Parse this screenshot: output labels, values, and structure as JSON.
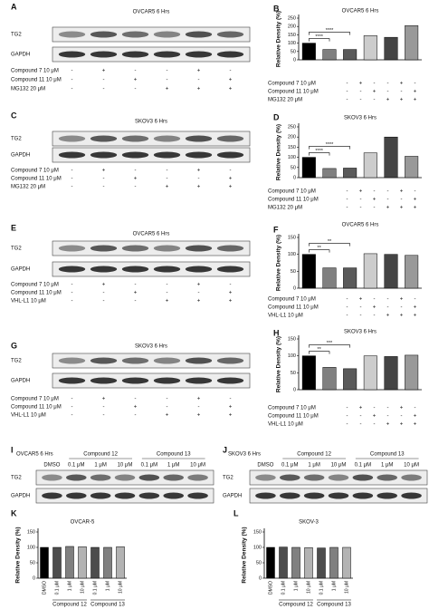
{
  "chart_data": [
    {
      "type": "bar",
      "panel": "B",
      "title": "OVCAR5 6 Hrs",
      "y_label": "Relative Density (%)",
      "ylim": [
        0,
        250
      ],
      "yticks": [
        0,
        50,
        100,
        150,
        200,
        250
      ],
      "values": [
        100,
        62,
        62,
        145,
        135,
        205
      ],
      "colors": [
        "#000000",
        "#808080",
        "#5a5a5a",
        "#cccccc",
        "#444444",
        "#999999"
      ],
      "annotations": [
        "****",
        "****"
      ],
      "conditions": [
        {
          "label": "Compound 7 10 μM",
          "signs": [
            "-",
            "+",
            "-",
            "-",
            "+",
            "-"
          ]
        },
        {
          "label": "Compound 11 10 μM",
          "signs": [
            "-",
            "-",
            "+",
            "-",
            "-",
            "+"
          ]
        },
        {
          "label": "MG132 20 μM",
          "signs": [
            "-",
            "-",
            "-",
            "+",
            "+",
            "+"
          ]
        }
      ]
    },
    {
      "type": "bar",
      "panel": "D",
      "title": "SKOV3 6 Hrs",
      "y_label": "Relative Density (%)",
      "ylim": [
        0,
        250
      ],
      "yticks": [
        0,
        50,
        100,
        150,
        200,
        250
      ],
      "values": [
        100,
        45,
        47,
        122,
        200,
        105
      ],
      "colors": [
        "#000000",
        "#808080",
        "#5a5a5a",
        "#cccccc",
        "#444444",
        "#999999"
      ],
      "annotations": [
        "****",
        "****"
      ],
      "conditions": [
        {
          "label": "Compound 7 10 μM",
          "signs": [
            "-",
            "+",
            "-",
            "-",
            "+",
            "-"
          ]
        },
        {
          "label": "Compound 11 10 μM",
          "signs": [
            "-",
            "-",
            "+",
            "-",
            "-",
            "+"
          ]
        },
        {
          "label": "MG132 20 μM",
          "signs": [
            "-",
            "-",
            "-",
            "+",
            "+",
            "+"
          ]
        }
      ]
    },
    {
      "type": "bar",
      "panel": "F",
      "title": "OVCAR5 6 Hrs",
      "y_label": "Relative Density (%)",
      "ylim": [
        0,
        150
      ],
      "yticks": [
        0,
        50,
        100,
        150
      ],
      "values": [
        100,
        60,
        60,
        102,
        100,
        97
      ],
      "colors": [
        "#000000",
        "#808080",
        "#5a5a5a",
        "#cccccc",
        "#444444",
        "#999999"
      ],
      "annotations": [
        "**",
        "**"
      ],
      "conditions": [
        {
          "label": "Compound 7 10 μM",
          "signs": [
            "-",
            "+",
            "-",
            "-",
            "+",
            "-"
          ]
        },
        {
          "label": "Compound 11 10 μM",
          "signs": [
            "-",
            "-",
            "+",
            "-",
            "-",
            "+"
          ]
        },
        {
          "label": "VHL-L1 10 μM",
          "signs": [
            "-",
            "-",
            "-",
            "+",
            "+",
            "+"
          ]
        }
      ]
    },
    {
      "type": "bar",
      "panel": "H",
      "title": "SKOV3 6 Hrs",
      "y_label": "Relative Density (%)",
      "ylim": [
        0,
        150
      ],
      "yticks": [
        0,
        50,
        100,
        150
      ],
      "values": [
        100,
        66,
        62,
        100,
        98,
        102
      ],
      "colors": [
        "#000000",
        "#808080",
        "#5a5a5a",
        "#cccccc",
        "#444444",
        "#999999"
      ],
      "annotations": [
        "**",
        "***"
      ],
      "conditions": [
        {
          "label": "Compound 7 10 μM",
          "signs": [
            "-",
            "+",
            "-",
            "-",
            "+",
            "-"
          ]
        },
        {
          "label": "Compound 11 10 μM",
          "signs": [
            "-",
            "-",
            "+",
            "-",
            "-",
            "+"
          ]
        },
        {
          "label": "VHL-L1 10 μM",
          "signs": [
            "-",
            "-",
            "-",
            "+",
            "+",
            "+"
          ]
        }
      ]
    },
    {
      "type": "bar",
      "panel": "K",
      "title": "OVCAR-5",
      "y_label": "Relative Density (%)",
      "ylim": [
        0,
        150
      ],
      "yticks": [
        0,
        50,
        100,
        150
      ],
      "categories": [
        "DMSO",
        "0.1 μM",
        "1 μM",
        "10 μM",
        "0.1 μM",
        "1 μM",
        "10 μM"
      ],
      "values": [
        100,
        100,
        103,
        102,
        100,
        100,
        102
      ],
      "colors": [
        "#000000",
        "#4d4d4d",
        "#808080",
        "#b3b3b3",
        "#4d4d4d",
        "#808080",
        "#b3b3b3"
      ],
      "groups": [
        "Compound 12",
        "Compound 13"
      ]
    },
    {
      "type": "bar",
      "panel": "L",
      "title": "SKOV-3",
      "y_label": "Relative Density (%)",
      "ylim": [
        0,
        150
      ],
      "yticks": [
        0,
        50,
        100,
        150
      ],
      "categories": [
        "DMSO",
        "0.1 μM",
        "1 μM",
        "10 μM",
        "0.1 μM",
        "1 μM",
        "10 μM"
      ],
      "values": [
        100,
        101,
        100,
        99,
        98,
        100,
        100
      ],
      "colors": [
        "#000000",
        "#4d4d4d",
        "#808080",
        "#b3b3b3",
        "#4d4d4d",
        "#808080",
        "#b3b3b3"
      ],
      "groups": [
        "Compound 12",
        "Compound 13"
      ]
    }
  ],
  "blots": [
    {
      "panel": "A",
      "title": "OVCAR5 6 Hrs",
      "bands": [
        "TG2",
        "GAPDH"
      ],
      "conditions": [
        {
          "label": "Compound 7 10 μM",
          "signs": [
            "-",
            "+",
            "-",
            "-",
            "+",
            "-"
          ]
        },
        {
          "label": "Compound 11 10 μM",
          "signs": [
            "-",
            "-",
            "+",
            "-",
            "-",
            "+"
          ]
        },
        {
          "label": "MG132 20 μM",
          "signs": [
            "-",
            "-",
            "-",
            "+",
            "+",
            "+"
          ]
        }
      ]
    },
    {
      "panel": "C",
      "title": "SKOV3 6 Hrs",
      "bands": [
        "TG2",
        "GAPDH"
      ],
      "conditions": [
        {
          "label": "Compound 7 10 μM",
          "signs": [
            "-",
            "+",
            "-",
            "-",
            "+",
            "-"
          ]
        },
        {
          "label": "Compound 11 10 μM",
          "signs": [
            "-",
            "-",
            "+",
            "-",
            "-",
            "+"
          ]
        },
        {
          "label": "MG132 20 μM",
          "signs": [
            "-",
            "-",
            "-",
            "+",
            "+",
            "+"
          ]
        }
      ]
    },
    {
      "panel": "E",
      "title": "OVCAR5 6 Hrs",
      "bands": [
        "TG2",
        "GAPDH"
      ],
      "conditions": [
        {
          "label": "Compound 7 10 μM",
          "signs": [
            "-",
            "+",
            "-",
            "-",
            "+",
            "-"
          ]
        },
        {
          "label": "Compound 11 10 μM",
          "signs": [
            "-",
            "-",
            "+",
            "-",
            "-",
            "+"
          ]
        },
        {
          "label": "VHL-L1 10 μM",
          "signs": [
            "-",
            "-",
            "-",
            "+",
            "+",
            "+"
          ]
        }
      ]
    },
    {
      "panel": "G",
      "title": "SKOV3 6 Hrs",
      "bands": [
        "TG2",
        "GAPDH"
      ],
      "conditions": [
        {
          "label": "Compound 7 10 μM",
          "signs": [
            "-",
            "+",
            "-",
            "-",
            "+",
            "-"
          ]
        },
        {
          "label": "Compound 11 10 μM",
          "signs": [
            "-",
            "-",
            "+",
            "-",
            "-",
            "+"
          ]
        },
        {
          "label": "VHL-L1 10 μM",
          "signs": [
            "-",
            "-",
            "-",
            "+",
            "+",
            "+"
          ]
        }
      ]
    },
    {
      "panel": "I",
      "title": "OVCAR5 6 Hrs",
      "bands": [
        "TG2",
        "GAPDH"
      ],
      "groups": [
        "Compound 12",
        "Compound 13"
      ],
      "lanes": [
        "DMSO",
        "0.1 μM",
        "1 μM",
        "10 μM",
        "0.1 μM",
        "1 μM",
        "10 μM"
      ]
    },
    {
      "panel": "J",
      "title": "SKOV3 6 Hrs",
      "bands": [
        "TG2",
        "GAPDH"
      ],
      "groups": [
        "Compound 12",
        "Compound 13"
      ],
      "lanes": [
        "DMSO",
        "0.1 μM",
        "1 μM",
        "10 μM",
        "0.1 μM",
        "1 μM",
        "10 μM"
      ]
    }
  ]
}
